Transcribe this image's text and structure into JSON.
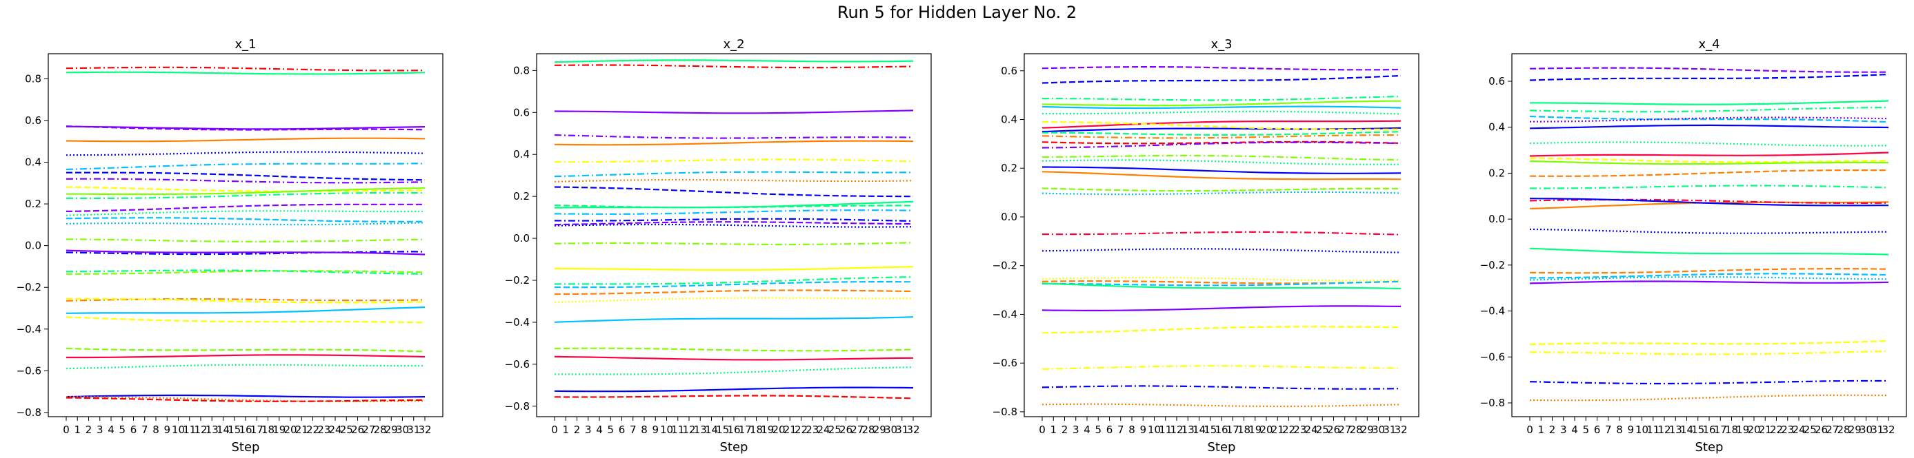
{
  "figure": {
    "title": "Run 5 for Hidden Layer No. 2"
  },
  "chart_data": [
    {
      "type": "line",
      "title": "x_1",
      "xlabel": "Step",
      "ylabel": "",
      "x": [
        0,
        1,
        2,
        3,
        4,
        5,
        6,
        7,
        8,
        9,
        10,
        11,
        12,
        13,
        14,
        15,
        16,
        17,
        18,
        19,
        20,
        21,
        22,
        23,
        24,
        25,
        26,
        27,
        28,
        29,
        30,
        31,
        32
      ],
      "xlim": [
        -1.6,
        33.6
      ],
      "ylim": [
        -0.82,
        0.92
      ],
      "yticks": [
        -0.8,
        -0.6,
        -0.4,
        -0.2,
        0.0,
        0.2,
        0.4,
        0.6,
        0.8
      ],
      "ytick_labels": [
        "−0.8",
        "−0.6",
        "−0.4",
        "−0.2",
        "0.0",
        "0.2",
        "0.4",
        "0.6",
        "0.8"
      ],
      "grid": false,
      "series": [
        {
          "color": "#ff0000",
          "style": "dashdot",
          "start": 0.85,
          "end": 0.845
        },
        {
          "color": "#00ff80",
          "style": "solid",
          "start": 0.825,
          "end": 0.83
        },
        {
          "color": "#8000ff",
          "style": "solid",
          "start": 0.565,
          "end": 0.565
        },
        {
          "color": "#8000ff",
          "style": "dashed",
          "start": 0.57,
          "end": 0.55
        },
        {
          "color": "#ff8000",
          "style": "solid",
          "start": 0.505,
          "end": 0.51
        },
        {
          "color": "#0000ff",
          "style": "dotted",
          "start": 0.44,
          "end": 0.445
        },
        {
          "color": "#00c0ff",
          "style": "dashdot",
          "start": 0.37,
          "end": 0.4
        },
        {
          "color": "#0000ff",
          "style": "dashed",
          "start": 0.35,
          "end": 0.32
        },
        {
          "color": "#8000ff",
          "style": "dashdot",
          "start": 0.315,
          "end": 0.305
        },
        {
          "color": "#ffff00",
          "style": "dashed",
          "start": 0.275,
          "end": 0.26
        },
        {
          "color": "#80ff00",
          "style": "solid",
          "start": 0.245,
          "end": 0.27
        },
        {
          "color": "#00ff80",
          "style": "dashdot",
          "start": 0.23,
          "end": 0.25
        },
        {
          "color": "#8000ff",
          "style": "dashed",
          "start": 0.17,
          "end": 0.2
        },
        {
          "color": "#00ff80",
          "style": "dotted",
          "start": 0.15,
          "end": 0.17
        },
        {
          "color": "#00c0ff",
          "style": "dashed",
          "start": 0.13,
          "end": 0.12
        },
        {
          "color": "#00c0ff",
          "style": "dotted",
          "start": 0.1,
          "end": 0.11
        },
        {
          "color": "#80ff00",
          "style": "dashdot",
          "start": 0.025,
          "end": 0.025
        },
        {
          "color": "#0000ff",
          "style": "dashdot",
          "start": -0.035,
          "end": -0.035
        },
        {
          "color": "#8000ff",
          "style": "solid",
          "start": -0.02,
          "end": -0.045
        },
        {
          "color": "#80ff00",
          "style": "dashed",
          "start": -0.13,
          "end": -0.125
        },
        {
          "color": "#00ff80",
          "style": "dashdot",
          "start": -0.12,
          "end": -0.13
        },
        {
          "color": "#ff8000",
          "style": "dashdot",
          "start": -0.265,
          "end": -0.255
        },
        {
          "color": "#ffff00",
          "style": "dashed",
          "start": -0.26,
          "end": -0.27
        },
        {
          "color": "#00c0ff",
          "style": "solid",
          "start": -0.33,
          "end": -0.3
        },
        {
          "color": "#ffff00",
          "style": "dashed",
          "start": -0.345,
          "end": -0.375
        },
        {
          "color": "#80ff00",
          "style": "dashed",
          "start": -0.49,
          "end": -0.51
        },
        {
          "color": "#ff0040",
          "style": "solid",
          "start": -0.53,
          "end": -0.53
        },
        {
          "color": "#00ff80",
          "style": "dotted",
          "start": -0.585,
          "end": -0.57
        },
        {
          "color": "#0000ff",
          "style": "solid",
          "start": -0.725,
          "end": -0.72
        },
        {
          "color": "#ff8000",
          "style": "dotted",
          "start": -0.73,
          "end": -0.745
        },
        {
          "color": "#ff0000",
          "style": "dashed",
          "start": -0.735,
          "end": -0.745
        }
      ]
    },
    {
      "type": "line",
      "title": "x_2",
      "xlabel": "Step",
      "ylabel": "",
      "x": [
        0,
        1,
        2,
        3,
        4,
        5,
        6,
        7,
        8,
        9,
        10,
        11,
        12,
        13,
        14,
        15,
        16,
        17,
        18,
        19,
        20,
        21,
        22,
        23,
        24,
        25,
        26,
        27,
        28,
        29,
        30,
        31,
        32
      ],
      "xlim": [
        -1.6,
        33.6
      ],
      "ylim": [
        -0.85,
        0.88
      ],
      "yticks": [
        -0.8,
        -0.6,
        -0.4,
        -0.2,
        0.0,
        0.2,
        0.4,
        0.6,
        0.8
      ],
      "ytick_labels": [
        "−0.8",
        "−0.6",
        "−0.4",
        "−0.2",
        "0.0",
        "0.2",
        "0.4",
        "0.6",
        "0.8"
      ],
      "grid": false,
      "series": [
        {
          "color": "#00ff80",
          "style": "solid",
          "start": 0.84,
          "end": 0.85
        },
        {
          "color": "#ff0000",
          "style": "dashdot",
          "start": 0.82,
          "end": 0.82
        },
        {
          "color": "#8000ff",
          "style": "solid",
          "start": 0.6,
          "end": 0.605
        },
        {
          "color": "#8000ff",
          "style": "dashdot",
          "start": 0.49,
          "end": 0.475
        },
        {
          "color": "#ff8000",
          "style": "solid",
          "start": 0.45,
          "end": 0.46
        },
        {
          "color": "#ffff00",
          "style": "dashdot",
          "start": 0.37,
          "end": 0.37
        },
        {
          "color": "#00c0ff",
          "style": "dashdot",
          "start": 0.3,
          "end": 0.32
        },
        {
          "color": "#ff8000",
          "style": "dotted",
          "start": 0.27,
          "end": 0.28
        },
        {
          "color": "#0000ff",
          "style": "dashed",
          "start": 0.24,
          "end": 0.2
        },
        {
          "color": "#00ff80",
          "style": "solid",
          "start": 0.14,
          "end": 0.17
        },
        {
          "color": "#00ff80",
          "style": "dashed",
          "start": 0.155,
          "end": 0.15
        },
        {
          "color": "#00c0ff",
          "style": "dashdot",
          "start": 0.12,
          "end": 0.13
        },
        {
          "color": "#0000ff",
          "style": "dashdot",
          "start": 0.09,
          "end": 0.085
        },
        {
          "color": "#8000ff",
          "style": "dashed",
          "start": 0.07,
          "end": 0.075
        },
        {
          "color": "#0000ff",
          "style": "dotted",
          "start": 0.06,
          "end": 0.06
        },
        {
          "color": "#80ff00",
          "style": "dashdot",
          "start": -0.03,
          "end": -0.02
        },
        {
          "color": "#ffff00",
          "style": "solid",
          "start": -0.15,
          "end": -0.14
        },
        {
          "color": "#00ff80",
          "style": "dashdot",
          "start": -0.22,
          "end": -0.19
        },
        {
          "color": "#00c0ff",
          "style": "dashed",
          "start": -0.23,
          "end": -0.21
        },
        {
          "color": "#ff8000",
          "style": "dashed",
          "start": -0.26,
          "end": -0.25
        },
        {
          "color": "#ffff00",
          "style": "dotted",
          "start": -0.3,
          "end": -0.28
        },
        {
          "color": "#00c0ff",
          "style": "solid",
          "start": -0.4,
          "end": -0.37
        },
        {
          "color": "#80ff00",
          "style": "dashed",
          "start": -0.53,
          "end": -0.53
        },
        {
          "color": "#ff0040",
          "style": "solid",
          "start": -0.57,
          "end": -0.575
        },
        {
          "color": "#00ff80",
          "style": "dotted",
          "start": -0.65,
          "end": -0.62
        },
        {
          "color": "#0000ff",
          "style": "solid",
          "start": -0.725,
          "end": -0.715
        },
        {
          "color": "#ff0000",
          "style": "dashed",
          "start": -0.75,
          "end": -0.76
        }
      ]
    },
    {
      "type": "line",
      "title": "x_3",
      "xlabel": "Step",
      "ylabel": "",
      "x": [
        0,
        1,
        2,
        3,
        4,
        5,
        6,
        7,
        8,
        9,
        10,
        11,
        12,
        13,
        14,
        15,
        16,
        17,
        18,
        19,
        20,
        21,
        22,
        23,
        24,
        25,
        26,
        27,
        28,
        29,
        30,
        31,
        32
      ],
      "xlim": [
        -1.6,
        33.6
      ],
      "ylim": [
        -0.82,
        0.67
      ],
      "yticks": [
        -0.8,
        -0.6,
        -0.4,
        -0.2,
        0.0,
        0.2,
        0.4,
        0.6
      ],
      "ytick_labels": [
        "−0.8",
        "−0.6",
        "−0.4",
        "−0.2",
        "0.0",
        "0.2",
        "0.4",
        "0.6"
      ],
      "grid": false,
      "series": [
        {
          "color": "#8000ff",
          "style": "dashed",
          "start": 0.61,
          "end": 0.61
        },
        {
          "color": "#0000ff",
          "style": "dashed",
          "start": 0.545,
          "end": 0.58
        },
        {
          "color": "#00ff80",
          "style": "dashdot",
          "start": 0.48,
          "end": 0.49
        },
        {
          "color": "#80ff00",
          "style": "solid",
          "start": 0.46,
          "end": 0.47
        },
        {
          "color": "#00c0ff",
          "style": "solid",
          "start": 0.455,
          "end": 0.445
        },
        {
          "color": "#00ff80",
          "style": "dotted",
          "start": 0.43,
          "end": 0.425
        },
        {
          "color": "#ff0040",
          "style": "solid",
          "start": 0.37,
          "end": 0.4
        },
        {
          "color": "#0000ff",
          "style": "solid",
          "start": 0.35,
          "end": 0.37
        },
        {
          "color": "#ffff00",
          "style": "dashed",
          "start": 0.385,
          "end": 0.36
        },
        {
          "color": "#00ff80",
          "style": "dashed",
          "start": 0.34,
          "end": 0.345
        },
        {
          "color": "#ff8000",
          "style": "dashdot",
          "start": 0.33,
          "end": 0.33
        },
        {
          "color": "#ff0000",
          "style": "dashed",
          "start": 0.31,
          "end": 0.3
        },
        {
          "color": "#8000ff",
          "style": "dashdot",
          "start": 0.29,
          "end": 0.305
        },
        {
          "color": "#80ff00",
          "style": "dashdot",
          "start": 0.25,
          "end": 0.24
        },
        {
          "color": "#00ff80",
          "style": "dotted",
          "start": 0.23,
          "end": 0.22
        },
        {
          "color": "#0000ff",
          "style": "solid",
          "start": 0.2,
          "end": 0.18
        },
        {
          "color": "#ff8000",
          "style": "solid",
          "start": 0.18,
          "end": 0.15
        },
        {
          "color": "#80ff00",
          "style": "dashed",
          "start": 0.115,
          "end": 0.11
        },
        {
          "color": "#00c0ff",
          "style": "dotted",
          "start": 0.1,
          "end": 0.095
        },
        {
          "color": "#ff0040",
          "style": "dashdot",
          "start": -0.065,
          "end": -0.07
        },
        {
          "color": "#0000ff",
          "style": "dotted",
          "start": -0.135,
          "end": -0.14
        },
        {
          "color": "#ffff00",
          "style": "dotted",
          "start": -0.255,
          "end": -0.255
        },
        {
          "color": "#ff8000",
          "style": "dashed",
          "start": -0.27,
          "end": -0.265
        },
        {
          "color": "#00c0ff",
          "style": "dashed",
          "start": -0.28,
          "end": -0.27
        },
        {
          "color": "#00ff80",
          "style": "solid",
          "start": -0.275,
          "end": -0.3
        },
        {
          "color": "#8000ff",
          "style": "solid",
          "start": -0.38,
          "end": -0.37
        },
        {
          "color": "#ffff00",
          "style": "dashed",
          "start": -0.47,
          "end": -0.45
        },
        {
          "color": "#ffff00",
          "style": "dashdot",
          "start": -0.62,
          "end": -0.615
        },
        {
          "color": "#0000ff",
          "style": "dashdot",
          "start": -0.7,
          "end": -0.7
        },
        {
          "color": "#ff8000",
          "style": "dotted",
          "start": -0.775,
          "end": -0.77
        }
      ]
    },
    {
      "type": "line",
      "title": "x_4",
      "xlabel": "Step",
      "ylabel": "",
      "x": [
        0,
        1,
        2,
        3,
        4,
        5,
        6,
        7,
        8,
        9,
        10,
        11,
        12,
        13,
        14,
        15,
        16,
        17,
        18,
        19,
        20,
        21,
        22,
        23,
        24,
        25,
        26,
        27,
        28,
        29,
        30,
        31,
        32
      ],
      "xlim": [
        -1.6,
        33.6
      ],
      "ylim": [
        -0.86,
        0.72
      ],
      "yticks": [
        -0.8,
        -0.6,
        -0.4,
        -0.2,
        0.0,
        0.2,
        0.4,
        0.6
      ],
      "ytick_labels": [
        "−0.8",
        "−0.6",
        "−0.4",
        "−0.2",
        "0.0",
        "0.2",
        "0.4",
        "0.6"
      ],
      "grid": false,
      "series": [
        {
          "color": "#8000ff",
          "style": "dashed",
          "start": 0.655,
          "end": 0.645
        },
        {
          "color": "#0000ff",
          "style": "dashed",
          "start": 0.6,
          "end": 0.63
        },
        {
          "color": "#00ff80",
          "style": "solid",
          "start": 0.5,
          "end": 0.51
        },
        {
          "color": "#00ff80",
          "style": "dashdot",
          "start": 0.47,
          "end": 0.48
        },
        {
          "color": "#00c0ff",
          "style": "dashed",
          "start": 0.45,
          "end": 0.42
        },
        {
          "color": "#8000ff",
          "style": "dotted",
          "start": 0.43,
          "end": 0.44
        },
        {
          "color": "#0000ff",
          "style": "solid",
          "start": 0.4,
          "end": 0.405
        },
        {
          "color": "#00ff80",
          "style": "dotted",
          "start": 0.33,
          "end": 0.325
        },
        {
          "color": "#ff0040",
          "style": "solid",
          "start": 0.27,
          "end": 0.29
        },
        {
          "color": "#ffff00",
          "style": "dashed",
          "start": 0.26,
          "end": 0.25
        },
        {
          "color": "#80ff00",
          "style": "solid",
          "start": 0.25,
          "end": 0.24
        },
        {
          "color": "#ff8000",
          "style": "dashed",
          "start": 0.19,
          "end": 0.21
        },
        {
          "color": "#00ff80",
          "style": "dashdot",
          "start": 0.14,
          "end": 0.14
        },
        {
          "color": "#ff8000",
          "style": "solid",
          "start": 0.05,
          "end": 0.08
        },
        {
          "color": "#ff0040",
          "style": "dashdot",
          "start": 0.08,
          "end": 0.075
        },
        {
          "color": "#0000ff",
          "style": "solid",
          "start": 0.085,
          "end": 0.06
        },
        {
          "color": "#0000ff",
          "style": "dotted",
          "start": -0.05,
          "end": -0.06
        },
        {
          "color": "#00ff80",
          "style": "solid",
          "start": -0.13,
          "end": -0.16
        },
        {
          "color": "#ff8000",
          "style": "dashed",
          "start": -0.23,
          "end": -0.22
        },
        {
          "color": "#00c0ff",
          "style": "dashed",
          "start": -0.25,
          "end": -0.24
        },
        {
          "color": "#00c0ff",
          "style": "dotted",
          "start": -0.26,
          "end": -0.255
        },
        {
          "color": "#8000ff",
          "style": "solid",
          "start": -0.28,
          "end": -0.27
        },
        {
          "color": "#ffff00",
          "style": "dashed",
          "start": -0.55,
          "end": -0.53
        },
        {
          "color": "#ffff00",
          "style": "dashdot",
          "start": -0.585,
          "end": -0.58
        },
        {
          "color": "#0000ff",
          "style": "dashdot",
          "start": -0.71,
          "end": -0.71
        },
        {
          "color": "#ff8000",
          "style": "dotted",
          "start": -0.785,
          "end": -0.77
        }
      ]
    }
  ]
}
